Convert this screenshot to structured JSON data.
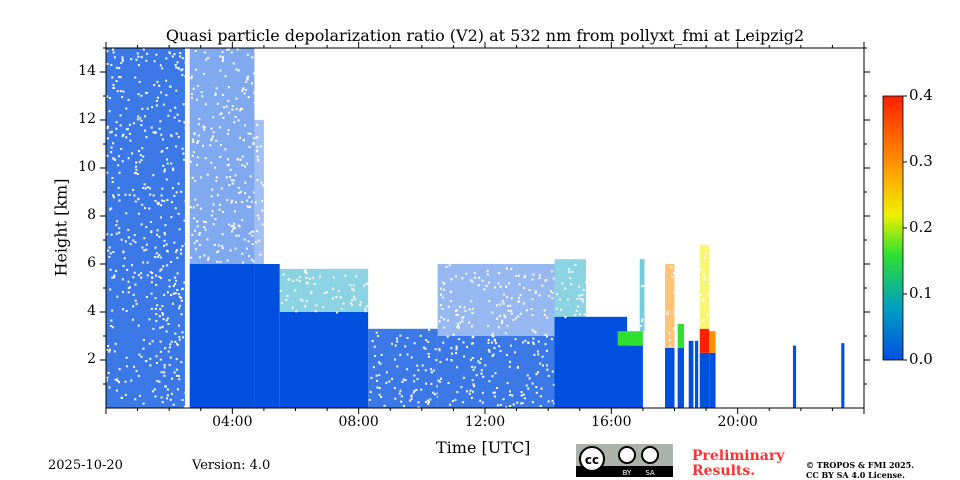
{
  "chart_data": {
    "type": "heatmap",
    "title": "Quasi particle depolarization ratio (V2) at 532 nm from pollyxt_fmi at Leipzig2",
    "xlabel": "Time [UTC]",
    "ylabel": "Height [km]",
    "xlim": [
      0,
      24
    ],
    "ylim": [
      0,
      15
    ],
    "x_ticks": [
      {
        "v": 4,
        "label": "04:00"
      },
      {
        "v": 8,
        "label": "08:00"
      },
      {
        "v": 12,
        "label": "12:00"
      },
      {
        "v": 16,
        "label": "16:00"
      },
      {
        "v": 20,
        "label": "20:00"
      }
    ],
    "y_ticks": [
      {
        "v": 2,
        "label": "2"
      },
      {
        "v": 4,
        "label": "4"
      },
      {
        "v": 6,
        "label": "6"
      },
      {
        "v": 8,
        "label": "8"
      },
      {
        "v": 10,
        "label": "10"
      },
      {
        "v": 12,
        "label": "12"
      },
      {
        "v": 14,
        "label": "14"
      }
    ],
    "colorbar": {
      "range": [
        0,
        0.4
      ],
      "ticks": [
        {
          "v": 0,
          "label": "0.0"
        },
        {
          "v": 0.1,
          "label": "0.1"
        },
        {
          "v": 0.2,
          "label": "0.2"
        },
        {
          "v": 0.3,
          "label": "0.3"
        },
        {
          "v": 0.4,
          "label": "0.4"
        }
      ],
      "colors": [
        "#0050e0",
        "#00a0c0",
        "#30e030",
        "#f0f000",
        "#ff9000",
        "#ff2000"
      ]
    },
    "regions": [
      {
        "t0": 0,
        "t1": 2.5,
        "h0": 0,
        "h1": 15,
        "value": 0.02,
        "density": 0.85
      },
      {
        "t0": 2.65,
        "t1": 4.7,
        "h0": 0,
        "h1": 6,
        "value": 0.02,
        "density": 1
      },
      {
        "t0": 2.65,
        "t1": 4.7,
        "h0": 6,
        "h1": 15,
        "value": 0.02,
        "density": 0.55
      },
      {
        "t0": 4.7,
        "t1": 5.5,
        "h0": 0,
        "h1": 6,
        "value": 0.03,
        "density": 1
      },
      {
        "t0": 4.7,
        "t1": 5.0,
        "h0": 6,
        "h1": 12,
        "value": 0.03,
        "density": 0.4
      },
      {
        "t0": 5.5,
        "t1": 8.3,
        "h0": 0,
        "h1": 4,
        "value": 0.03,
        "density": 1
      },
      {
        "t0": 5.5,
        "t1": 8.3,
        "h0": 4,
        "h1": 5.8,
        "value": 0.05,
        "density": 0.5
      },
      {
        "t0": 8.3,
        "t1": 10.5,
        "h0": 0,
        "h1": 3.3,
        "value": 0.03,
        "density": 0.85
      },
      {
        "t0": 10.5,
        "t1": 14.2,
        "h0": 0,
        "h1": 3,
        "value": 0.03,
        "density": 0.85
      },
      {
        "t0": 10.5,
        "t1": 14.2,
        "h0": 3,
        "h1": 6,
        "value": 0.04,
        "density": 0.45
      },
      {
        "t0": 14.2,
        "t1": 16.5,
        "h0": 0,
        "h1": 3.8,
        "value": 0.03,
        "density": 1
      },
      {
        "t0": 14.2,
        "t1": 15.2,
        "h0": 3.8,
        "h1": 6.2,
        "value": 0.06,
        "density": 0.5
      },
      {
        "t0": 16.2,
        "t1": 17.0,
        "h0": 0,
        "h1": 2.6,
        "value": 0.03,
        "density": 1
      },
      {
        "t0": 16.2,
        "t1": 17.0,
        "h0": 2.6,
        "h1": 3.2,
        "value": 0.12,
        "density": 1
      },
      {
        "t0": 16.9,
        "t1": 17.05,
        "h0": 3.2,
        "h1": 6.2,
        "value": 0.05,
        "density": 0.6
      },
      {
        "t0": 17.7,
        "t1": 18.0,
        "h0": 0,
        "h1": 2.5,
        "value": 0.03,
        "density": 1
      },
      {
        "t0": 17.7,
        "t1": 18.0,
        "h0": 2.5,
        "h1": 6.0,
        "value": 0.3,
        "density": 0.6
      },
      {
        "t0": 18.1,
        "t1": 18.3,
        "h0": 0,
        "h1": 2.5,
        "value": 0.03,
        "density": 1
      },
      {
        "t0": 18.1,
        "t1": 18.3,
        "h0": 2.5,
        "h1": 3.5,
        "value": 0.15,
        "density": 1
      },
      {
        "t0": 18.45,
        "t1": 18.6,
        "h0": 0,
        "h1": 2.8,
        "value": 0.03,
        "density": 1
      },
      {
        "t0": 18.65,
        "t1": 18.75,
        "h0": 0,
        "h1": 2.8,
        "value": 0.03,
        "density": 1
      },
      {
        "t0": 18.8,
        "t1": 19.1,
        "h0": 0,
        "h1": 2.3,
        "value": 0.03,
        "density": 1
      },
      {
        "t0": 18.8,
        "t1": 19.1,
        "h0": 2.3,
        "h1": 3.3,
        "value": 0.38,
        "density": 1
      },
      {
        "t0": 18.8,
        "t1": 19.1,
        "h0": 3.3,
        "h1": 6.8,
        "value": 0.2,
        "density": 0.6
      },
      {
        "t0": 19.1,
        "t1": 19.3,
        "h0": 0,
        "h1": 2.3,
        "value": 0.03,
        "density": 1
      },
      {
        "t0": 19.1,
        "t1": 19.3,
        "h0": 2.3,
        "h1": 3.2,
        "value": 0.3,
        "density": 1
      },
      {
        "t0": 21.75,
        "t1": 21.85,
        "h0": 0,
        "h1": 2.6,
        "value": 0.04,
        "density": 1
      },
      {
        "t0": 23.28,
        "t1": 23.38,
        "h0": 0,
        "h1": 2.7,
        "value": 0.04,
        "density": 1
      }
    ]
  },
  "footer": {
    "date": "2025-10-20",
    "version": "Version: 4.0",
    "preliminary": "Preliminary\nResults.",
    "preliminary_line1": "Preliminary",
    "preliminary_line2": "Results.",
    "copyright_line1": "© TROPOS & FMI 2025.",
    "copyright_line2": "CC BY SA 4.0 License.",
    "license_logo": "cc BY SA"
  }
}
